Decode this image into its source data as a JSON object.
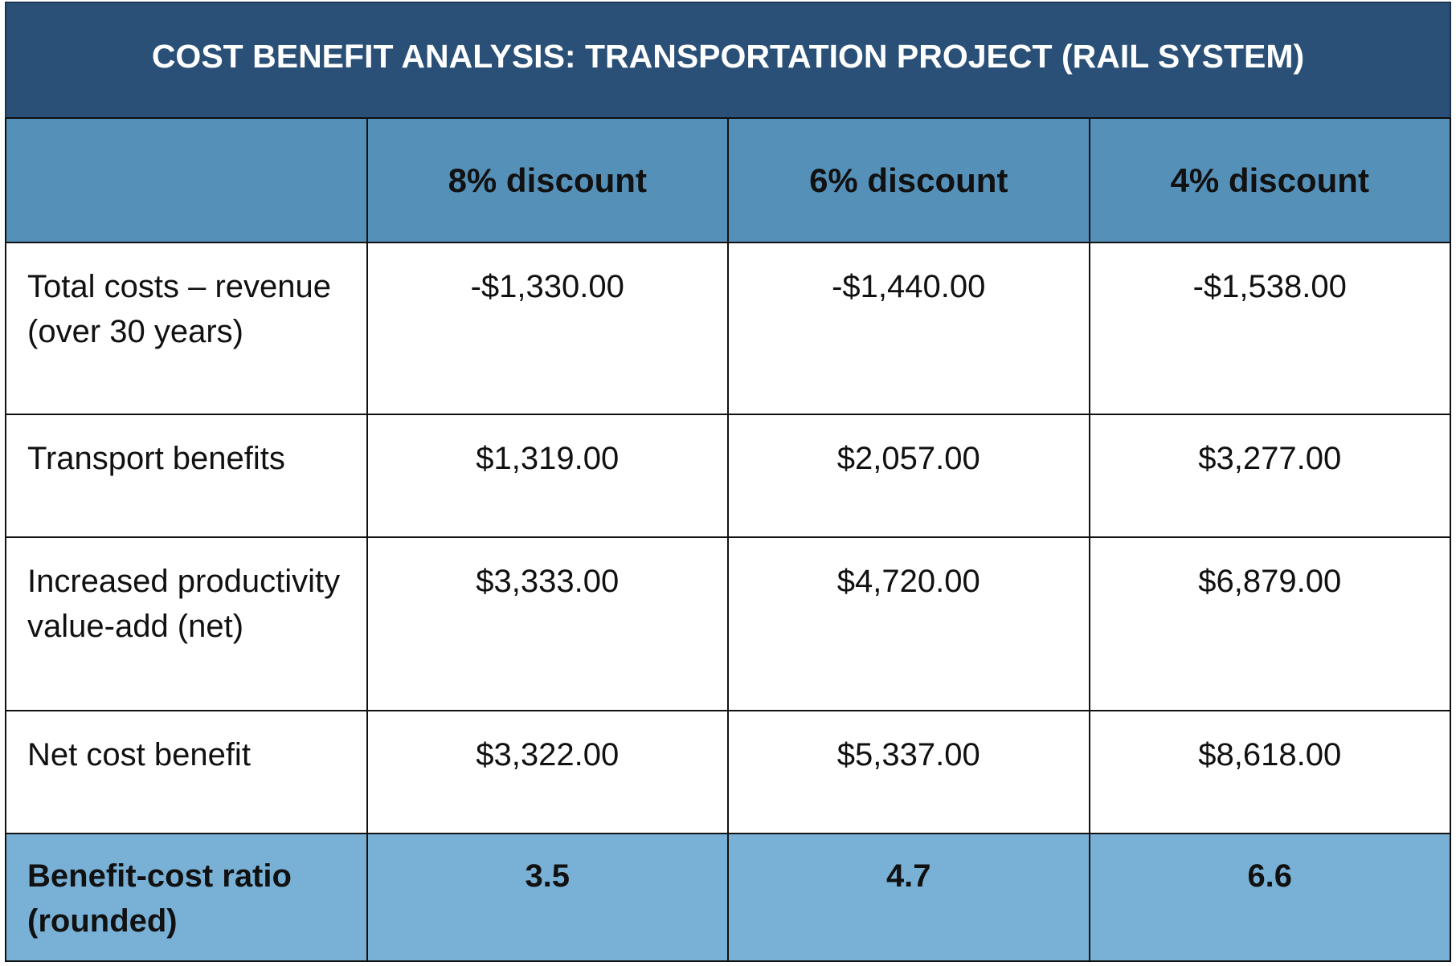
{
  "header": {
    "title": "COST BENEFIT ANALYSIS: TRANSPORTATION PROJECT (RAIL SYSTEM)"
  },
  "table": {
    "columns": [
      "8% discount",
      "6% discount",
      "4% discount"
    ],
    "rows": [
      {
        "label": "Total costs – revenue (over 30 years)",
        "values": [
          "-$1,330.00",
          "-$1,440.00",
          "-$1,538.00"
        ]
      },
      {
        "label": "Transport benefits",
        "values": [
          "$1,319.00",
          "$2,057.00",
          "$3,277.00"
        ]
      },
      {
        "label": "Increased productivity value-add (net)",
        "values": [
          "$3,333.00",
          "$4,720.00",
          "$6,879.00"
        ]
      },
      {
        "label": "Net cost benefit",
        "values": [
          "$3,322.00",
          "$5,337.00",
          "$8,618.00"
        ]
      },
      {
        "label": "Benefit-cost ratio (rounded)",
        "values": [
          "3.5",
          "4.7",
          "6.6"
        ]
      }
    ]
  }
}
